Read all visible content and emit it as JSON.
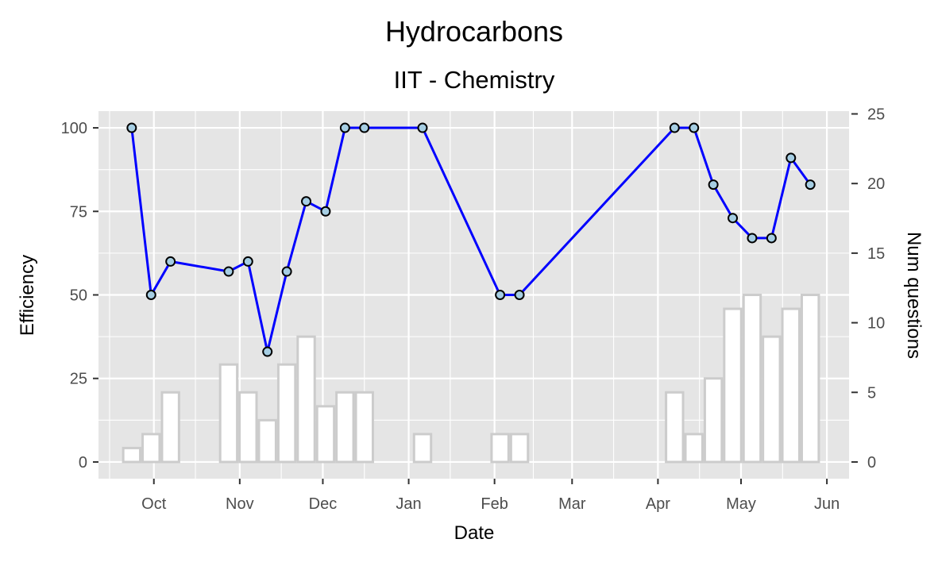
{
  "chart_data": {
    "type": "line",
    "title": "Hydrocarbons",
    "subtitle": "IIT - Chemistry",
    "xlabel": "Date",
    "ylabel": "Efficiency",
    "y2label": "Num questions",
    "xlim": [
      "2021-09-11",
      "2022-06-09"
    ],
    "ylim": [
      -5,
      105
    ],
    "y2lim": [
      -1.2,
      25.2
    ],
    "x_ticks": [
      {
        "label": "Oct",
        "date": "2021-10-01"
      },
      {
        "label": "Nov",
        "date": "2021-11-01"
      },
      {
        "label": "Dec",
        "date": "2021-12-01"
      },
      {
        "label": "Jan",
        "date": "2022-01-01"
      },
      {
        "label": "Feb",
        "date": "2022-02-01"
      },
      {
        "label": "Mar",
        "date": "2022-03-01"
      },
      {
        "label": "Apr",
        "date": "2022-04-01"
      },
      {
        "label": "May",
        "date": "2022-05-01"
      },
      {
        "label": "Jun",
        "date": "2022-06-01"
      }
    ],
    "y_ticks": [
      "0",
      "25",
      "50",
      "75",
      "100"
    ],
    "y2_ticks": [
      "0",
      "5",
      "10",
      "15",
      "20",
      "25"
    ],
    "grid": true,
    "series": [
      {
        "kind": "line",
        "axis": "left",
        "color": "#0000ff",
        "point_fill": "#a6cee3",
        "points": [
          {
            "date": "2021-09-23",
            "value": 100
          },
          {
            "date": "2021-09-30",
            "value": 50
          },
          {
            "date": "2021-10-07",
            "value": 60
          },
          {
            "date": "2021-10-28",
            "value": 57
          },
          {
            "date": "2021-11-04",
            "value": 60
          },
          {
            "date": "2021-11-11",
            "value": 33
          },
          {
            "date": "2021-11-18",
            "value": 57
          },
          {
            "date": "2021-11-25",
            "value": 78
          },
          {
            "date": "2021-12-02",
            "value": 75
          },
          {
            "date": "2021-12-09",
            "value": 100
          },
          {
            "date": "2021-12-16",
            "value": 100
          },
          {
            "date": "2022-01-06",
            "value": 100
          },
          {
            "date": "2022-02-03",
            "value": 50
          },
          {
            "date": "2022-02-10",
            "value": 50
          },
          {
            "date": "2022-04-07",
            "value": 100
          },
          {
            "date": "2022-04-14",
            "value": 100
          },
          {
            "date": "2022-04-21",
            "value": 83
          },
          {
            "date": "2022-04-28",
            "value": 73
          },
          {
            "date": "2022-05-05",
            "value": 67
          },
          {
            "date": "2022-05-12",
            "value": 67
          },
          {
            "date": "2022-05-19",
            "value": 91
          },
          {
            "date": "2022-05-26",
            "value": 83
          }
        ]
      },
      {
        "kind": "bar",
        "axis": "right",
        "fill": "#ffffff",
        "stroke": "#cccccc",
        "points": [
          {
            "date": "2021-09-23",
            "value": 1
          },
          {
            "date": "2021-09-30",
            "value": 2
          },
          {
            "date": "2021-10-07",
            "value": 5
          },
          {
            "date": "2021-10-28",
            "value": 7
          },
          {
            "date": "2021-11-04",
            "value": 5
          },
          {
            "date": "2021-11-11",
            "value": 3
          },
          {
            "date": "2021-11-18",
            "value": 7
          },
          {
            "date": "2021-11-25",
            "value": 9
          },
          {
            "date": "2021-12-02",
            "value": 4
          },
          {
            "date": "2021-12-09",
            "value": 5
          },
          {
            "date": "2021-12-16",
            "value": 5
          },
          {
            "date": "2022-01-06",
            "value": 2
          },
          {
            "date": "2022-02-03",
            "value": 2
          },
          {
            "date": "2022-02-10",
            "value": 2
          },
          {
            "date": "2022-04-07",
            "value": 5
          },
          {
            "date": "2022-04-14",
            "value": 2
          },
          {
            "date": "2022-04-21",
            "value": 6
          },
          {
            "date": "2022-04-28",
            "value": 11
          },
          {
            "date": "2022-05-05",
            "value": 12
          },
          {
            "date": "2022-05-12",
            "value": 9
          },
          {
            "date": "2022-05-19",
            "value": 11
          },
          {
            "date": "2022-05-26",
            "value": 12
          }
        ]
      }
    ],
    "colors": {
      "panel_bg": "#e5e5e5",
      "grid": "#ffffff",
      "line": "#0000ff",
      "point_fill": "#a6cee3",
      "bar_stroke": "#cccccc",
      "tick_text": "#4d4d4d"
    }
  }
}
